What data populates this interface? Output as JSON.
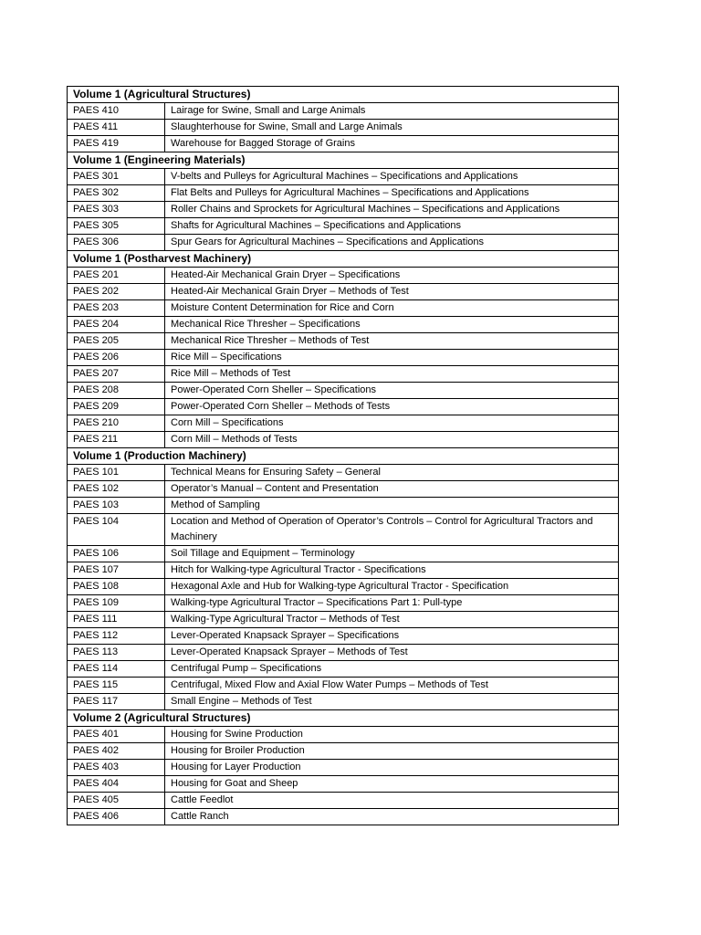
{
  "sections": [
    {
      "title": "Volume 1 (Agricultural Structures)",
      "rows": [
        {
          "code": "PAES 410",
          "desc": "Lairage for Swine, Small and Large Animals"
        },
        {
          "code": "PAES 411",
          "desc": "Slaughterhouse for Swine, Small and Large Animals"
        },
        {
          "code": "PAES 419",
          "desc": "Warehouse for Bagged Storage of Grains"
        }
      ]
    },
    {
      "title": "Volume 1 (Engineering Materials)",
      "rows": [
        {
          "code": "PAES 301",
          "desc": "V-belts and Pulleys for Agricultural Machines – Specifications and Applications"
        },
        {
          "code": "PAES 302",
          "desc": "Flat Belts and Pulleys for Agricultural Machines – Specifications and Applications"
        },
        {
          "code": "PAES 303",
          "desc": "Roller Chains and Sprockets for Agricultural Machines – Specifications and Applications"
        },
        {
          "code": "PAES 305",
          "desc": "Shafts for Agricultural Machines – Specifications and Applications"
        },
        {
          "code": "PAES 306",
          "desc": "Spur Gears for Agricultural Machines – Specifications and Applications"
        }
      ]
    },
    {
      "title": "Volume 1 (Postharvest Machinery)",
      "rows": [
        {
          "code": "PAES 201",
          "desc": "Heated-Air Mechanical Grain Dryer – Specifications"
        },
        {
          "code": "PAES 202",
          "desc": "Heated-Air Mechanical Grain Dryer – Methods of Test"
        },
        {
          "code": "PAES 203",
          "desc": "Moisture Content Determination for Rice and Corn"
        },
        {
          "code": "PAES 204",
          "desc": "Mechanical Rice Thresher – Specifications"
        },
        {
          "code": "PAES 205",
          "desc": "Mechanical Rice Thresher – Methods of Test"
        },
        {
          "code": "PAES 206",
          "desc": "Rice Mill – Specifications"
        },
        {
          "code": "PAES 207",
          "desc": "Rice Mill – Methods of Test"
        },
        {
          "code": "PAES 208",
          "desc": "Power-Operated Corn Sheller – Specifications"
        },
        {
          "code": "PAES 209",
          "desc": "Power-Operated Corn Sheller – Methods of Tests"
        },
        {
          "code": "PAES 210",
          "desc": "Corn Mill – Specifications"
        },
        {
          "code": "PAES 211",
          "desc": "Corn Mill – Methods of Tests"
        }
      ]
    },
    {
      "title": "Volume 1 (Production Machinery)",
      "rows": [
        {
          "code": "PAES 101",
          "desc": "Technical Means for Ensuring Safety – General"
        },
        {
          "code": "PAES 102",
          "desc": "Operator’s Manual – Content and Presentation"
        },
        {
          "code": "PAES 103",
          "desc": "Method of Sampling"
        },
        {
          "code": "PAES 104",
          "desc": "Location and Method of Operation of Operator’s Controls – Control for Agricultural Tractors and Machinery"
        },
        {
          "code": "PAES 106",
          "desc": "Soil Tillage and Equipment – Terminology"
        },
        {
          "code": "PAES 107",
          "desc": "Hitch for Walking-type Agricultural Tractor - Specifications"
        },
        {
          "code": "PAES 108",
          "desc": "Hexagonal Axle and Hub for Walking-type Agricultural Tractor - Specification"
        },
        {
          "code": "PAES 109",
          "desc": "Walking-type Agricultural Tractor – Specifications Part 1: Pull-type"
        },
        {
          "code": "PAES 111",
          "desc": "Walking-Type Agricultural Tractor – Methods of Test"
        },
        {
          "code": "PAES 112",
          "desc": "Lever-Operated Knapsack Sprayer – Specifications"
        },
        {
          "code": "PAES 113",
          "desc": "Lever-Operated Knapsack Sprayer – Methods of Test"
        },
        {
          "code": "PAES 114",
          "desc": "Centrifugal Pump – Specifications"
        },
        {
          "code": "PAES 115",
          "desc": "Centrifugal, Mixed Flow and Axial Flow Water Pumps – Methods of Test"
        },
        {
          "code": "PAES 117",
          "desc": "Small Engine – Methods of Test"
        }
      ]
    },
    {
      "title": "Volume 2 (Agricultural Structures)",
      "rows": [
        {
          "code": "PAES 401",
          "desc": "Housing for Swine Production"
        },
        {
          "code": "PAES 402",
          "desc": "Housing for Broiler Production"
        },
        {
          "code": "PAES 403",
          "desc": "Housing for Layer Production"
        },
        {
          "code": "PAES 404",
          "desc": "Housing for Goat and Sheep"
        },
        {
          "code": "PAES 405",
          "desc": "Cattle Feedlot"
        },
        {
          "code": "PAES 406",
          "desc": "Cattle Ranch"
        }
      ]
    }
  ]
}
